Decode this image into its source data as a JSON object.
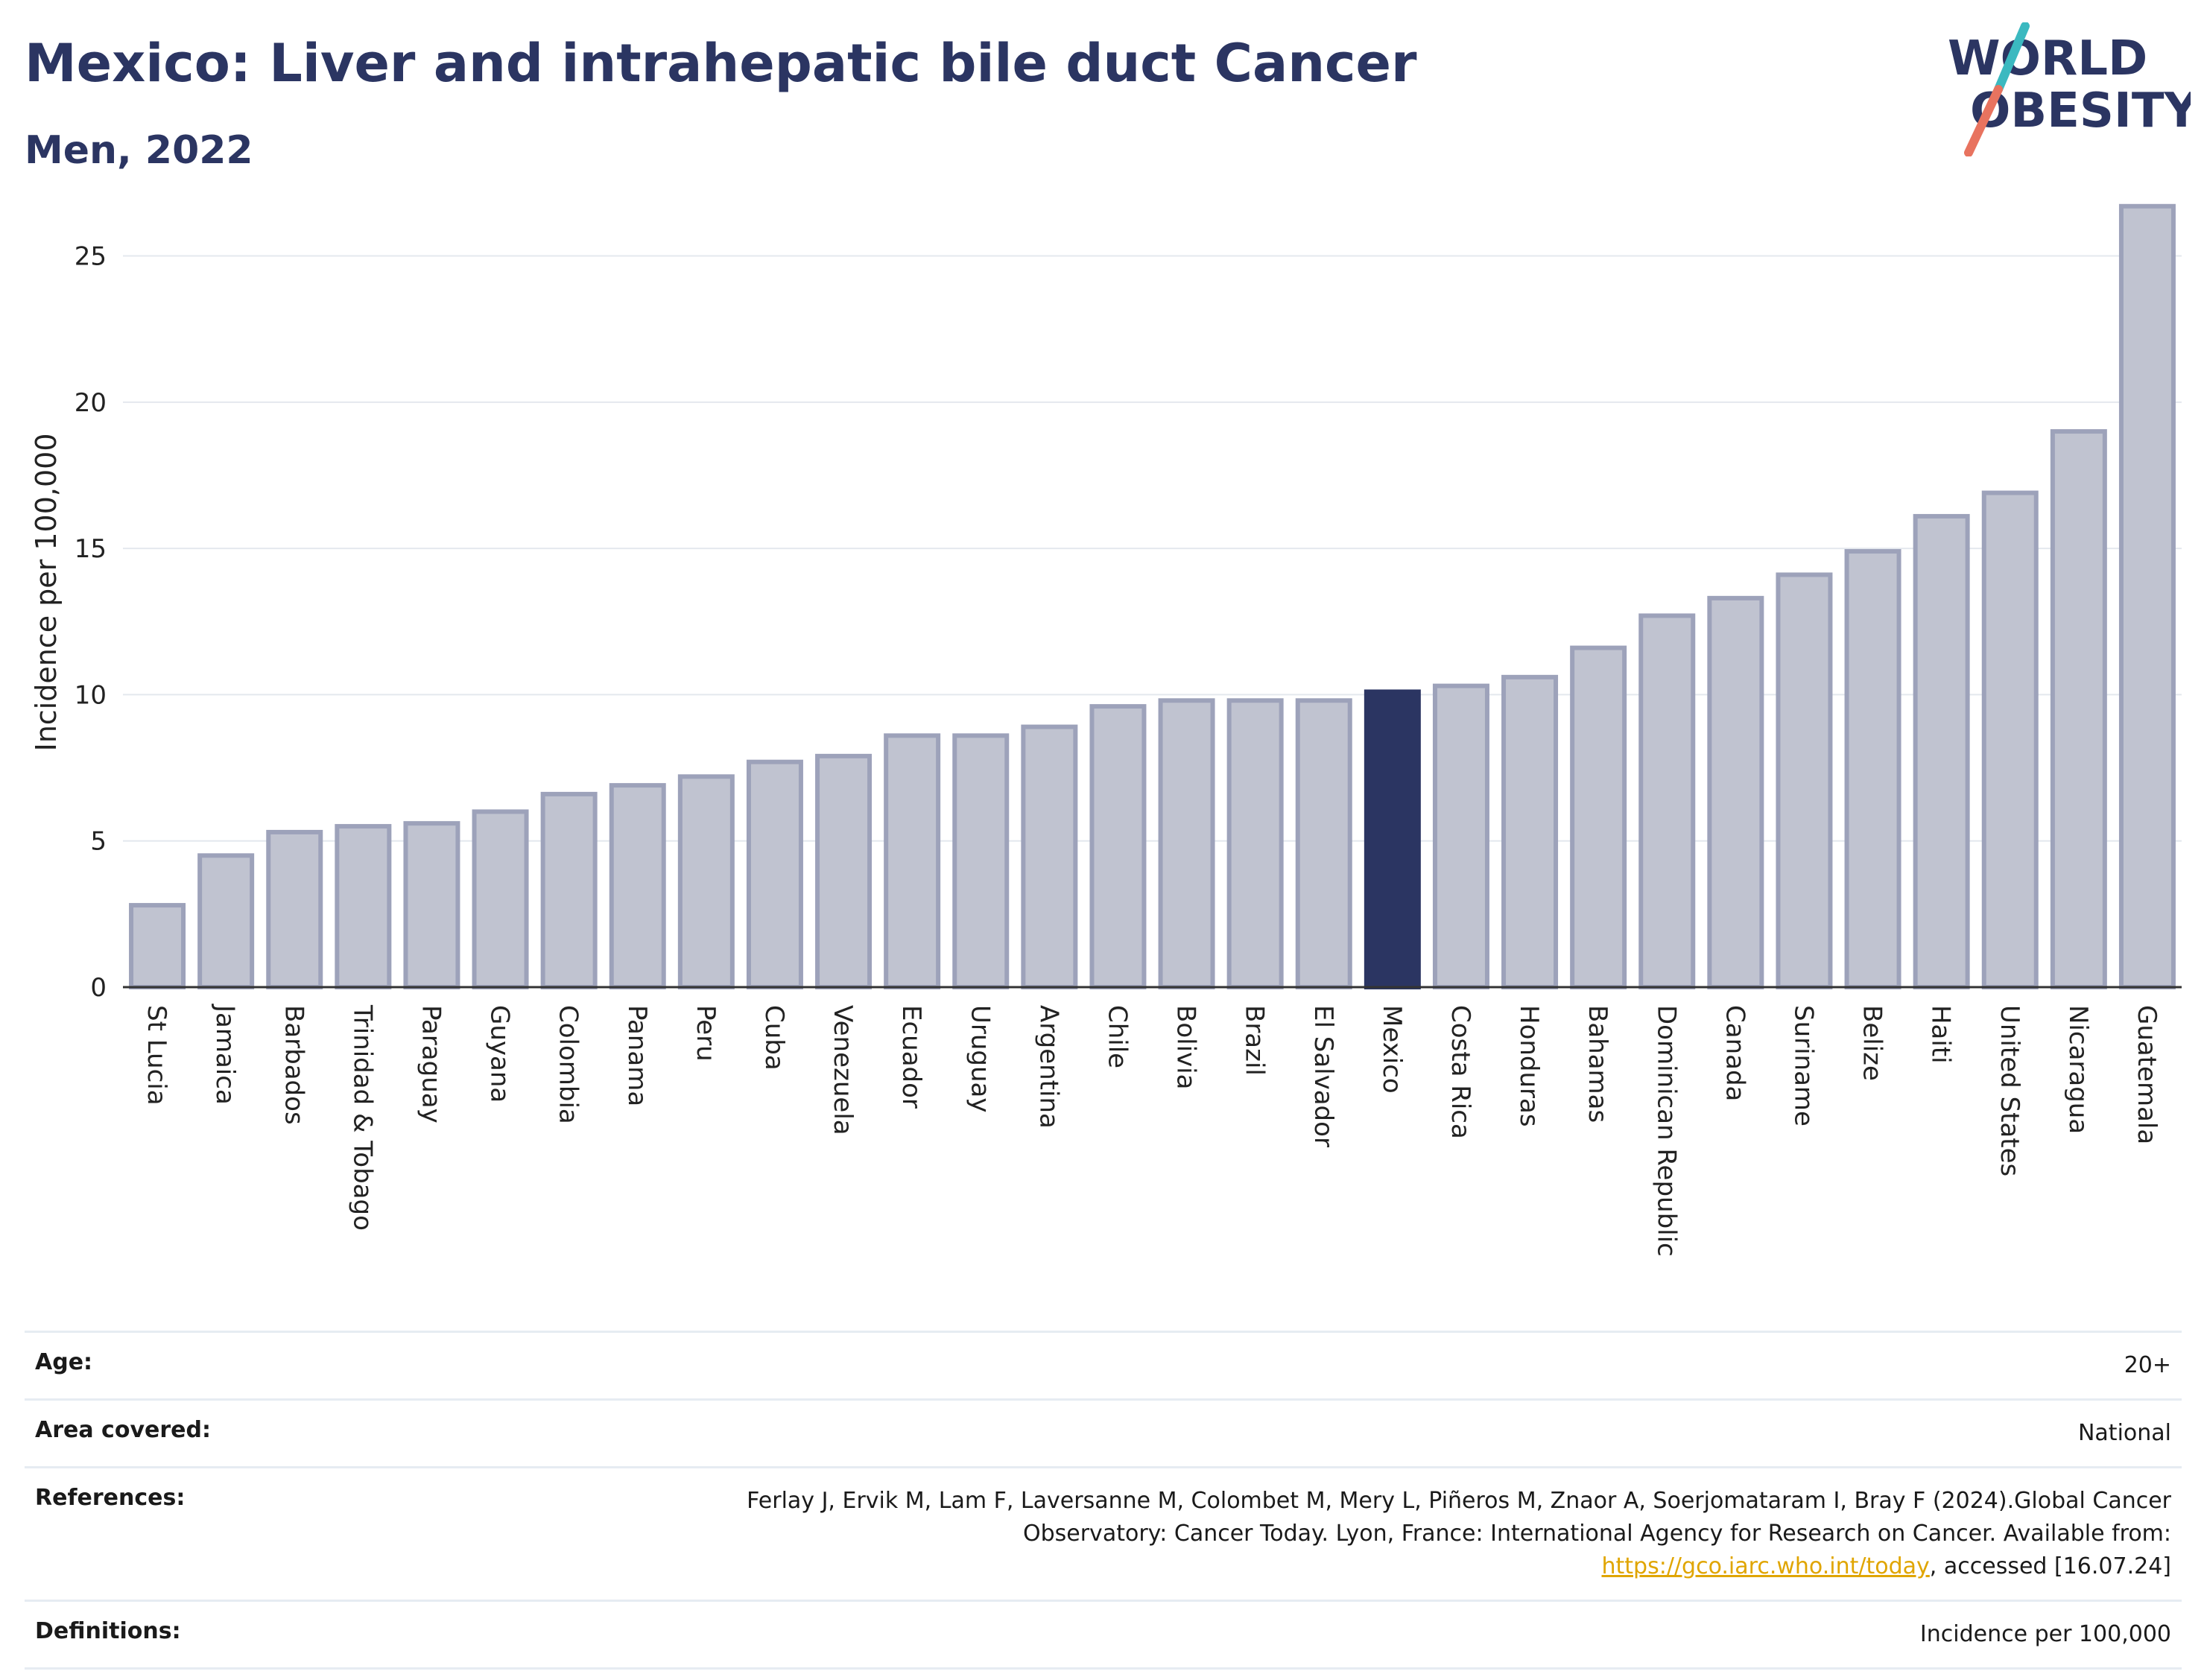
{
  "header": {
    "title": "Mexico: Liver and intrahepatic bile duct Cancer",
    "subtitle": "Men, 2022"
  },
  "logo": {
    "line1": "WORLD",
    "line2": "OBESITY",
    "colors": {
      "text": "#2b3562",
      "slash_red": "#e8735f",
      "slash_teal": "#3bb9c0"
    }
  },
  "chart_data": {
    "type": "bar",
    "ylabel": "Incidence per 100,000",
    "xlabel": "",
    "ylim": [
      0,
      27
    ],
    "yticks": [
      0,
      5,
      10,
      15,
      20,
      25
    ],
    "grid": true,
    "highlight": "Mexico",
    "colors": {
      "bar": "#c0c3d0",
      "bar_edge": "#9da2ba",
      "highlight": "#2b3562"
    },
    "categories": [
      "St Lucia",
      "Jamaica",
      "Barbados",
      "Trinidad & Tobago",
      "Paraguay",
      "Guyana",
      "Colombia",
      "Panama",
      "Peru",
      "Cuba",
      "Venezuela",
      "Ecuador",
      "Uruguay",
      "Argentina",
      "Chile",
      "Bolivia",
      "Brazil",
      "El Salvador",
      "Mexico",
      "Costa Rica",
      "Honduras",
      "Bahamas",
      "Dominican Republic",
      "Canada",
      "Suriname",
      "Belize",
      "Haiti",
      "United States",
      "Nicaragua",
      "Guatemala"
    ],
    "values": [
      2.8,
      4.5,
      5.3,
      5.5,
      5.6,
      6.0,
      6.6,
      6.9,
      7.2,
      7.7,
      7.9,
      8.6,
      8.6,
      8.9,
      9.6,
      9.8,
      9.8,
      9.8,
      10.1,
      10.3,
      10.6,
      11.6,
      12.7,
      13.3,
      14.1,
      14.9,
      16.1,
      16.9,
      19.0,
      26.7
    ]
  },
  "meta": {
    "age_label": "Age:",
    "age_value": "20+",
    "area_label": "Area covered:",
    "area_value": "National",
    "references_label": "References:",
    "references_text": "Ferlay J, Ervik M, Lam F, Laversanne M, Colombet M, Mery L, Piñeros M, Znaor A, Soerjomataram I, Bray F (2024).Global Cancer Observatory: Cancer Today. Lyon, France: International Agency for Research on Cancer. Available from: ",
    "references_link": "https://gco.iarc.who.int/today",
    "references_suffix": ", accessed [16.07.24]",
    "definitions_label": "Definitions:",
    "definitions_value": "Incidence per 100,000"
  }
}
